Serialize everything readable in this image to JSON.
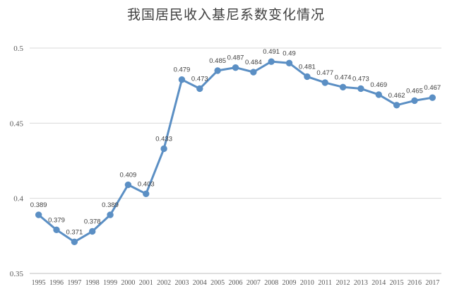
{
  "chart_data": {
    "type": "line",
    "title": "我国居民收入基尼系数变化情况",
    "xlabel": "",
    "ylabel": "",
    "ylim": [
      0.35,
      0.5
    ],
    "y_ticks": [
      "0.35",
      "0.4",
      "0.45",
      "0.5"
    ],
    "grid": true,
    "legend": "none",
    "x": [
      "1995",
      "1996",
      "1997",
      "1998",
      "1999",
      "2000",
      "2001",
      "2002",
      "2003",
      "2004",
      "2005",
      "2006",
      "2007",
      "2008",
      "2009",
      "2010",
      "2011",
      "2012",
      "2013",
      "2014",
      "2015",
      "2016",
      "2017"
    ],
    "series": [
      {
        "values": [
          0.389,
          0.379,
          0.371,
          0.378,
          0.389,
          0.409,
          0.403,
          0.433,
          0.479,
          0.473,
          0.485,
          0.487,
          0.484,
          0.491,
          0.49,
          0.481,
          0.477,
          0.474,
          0.473,
          0.469,
          0.462,
          0.465,
          0.467
        ],
        "labels": [
          "0.389",
          "0.379",
          "0.371",
          "0.378",
          "0.389",
          "0.409",
          "0.403",
          "0.433",
          "0.479",
          "0.473",
          "0.485",
          "0.487",
          "0.484",
          "0.491",
          "0.49",
          "0.481",
          "0.477",
          "0.474",
          "0.473",
          "0.469",
          "0.462",
          "0.465",
          "0.467"
        ],
        "color": "#5b8fc4"
      }
    ]
  }
}
